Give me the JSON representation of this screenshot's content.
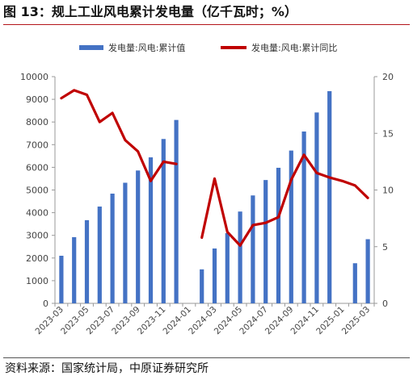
{
  "title": "图 13：规上工业风电累计发电量（亿千瓦时；%）",
  "source": "资料来源：国家统计局，中原证券研究所",
  "chart_data": {
    "type": "bar",
    "categories": [
      "2023-03",
      "2023-04",
      "2023-05",
      "2023-06",
      "2023-07",
      "2023-08",
      "2023-09",
      "2023-10",
      "2023-11",
      "2023-12",
      "2024-01",
      "2024-02",
      "2024-03",
      "2024-04",
      "2024-05",
      "2024-06",
      "2024-07",
      "2024-08",
      "2024-09",
      "2024-10",
      "2024-11",
      "2024-12",
      "2025-01",
      "2025-02",
      "2025-03"
    ],
    "x_tick_labels": [
      "2023-03",
      "2023-05",
      "2023-07",
      "2023-09",
      "2023-11",
      "2024-01",
      "2024-03",
      "2024-05",
      "2024-07",
      "2024-09",
      "2024-11",
      "2025-01",
      "2025-03"
    ],
    "series": [
      {
        "name": "发电量:风电:累计值",
        "type": "bar",
        "axis": "left",
        "color": "#4472c4",
        "values": [
          2100,
          2920,
          3670,
          4270,
          4840,
          5320,
          5860,
          6440,
          7250,
          8090,
          null,
          1500,
          2420,
          3100,
          4050,
          4760,
          5440,
          5980,
          6740,
          7580,
          8420,
          9360,
          null,
          1770,
          2830
        ]
      },
      {
        "name": "发电量:风电:累计同比",
        "type": "line",
        "axis": "right",
        "color": "#c00000",
        "values": [
          18.1,
          18.8,
          18.4,
          16.0,
          16.8,
          14.4,
          13.4,
          10.8,
          12.5,
          12.3,
          null,
          5.8,
          11.0,
          6.3,
          5.1,
          6.9,
          7.1,
          7.6,
          10.9,
          13.1,
          11.5,
          11.1,
          10.8,
          10.4,
          9.3
        ]
      }
    ],
    "y_left": {
      "ylim": [
        0,
        10000
      ],
      "ticks": [
        "0",
        "1000",
        "2000",
        "3000",
        "4000",
        "5000",
        "6000",
        "7000",
        "8000",
        "9000",
        "10000"
      ]
    },
    "y_right": {
      "ylim": [
        0,
        20
      ],
      "ticks": [
        "0",
        "5",
        "10",
        "15",
        "20"
      ]
    },
    "legend_placement": "top-center",
    "grid": false
  }
}
